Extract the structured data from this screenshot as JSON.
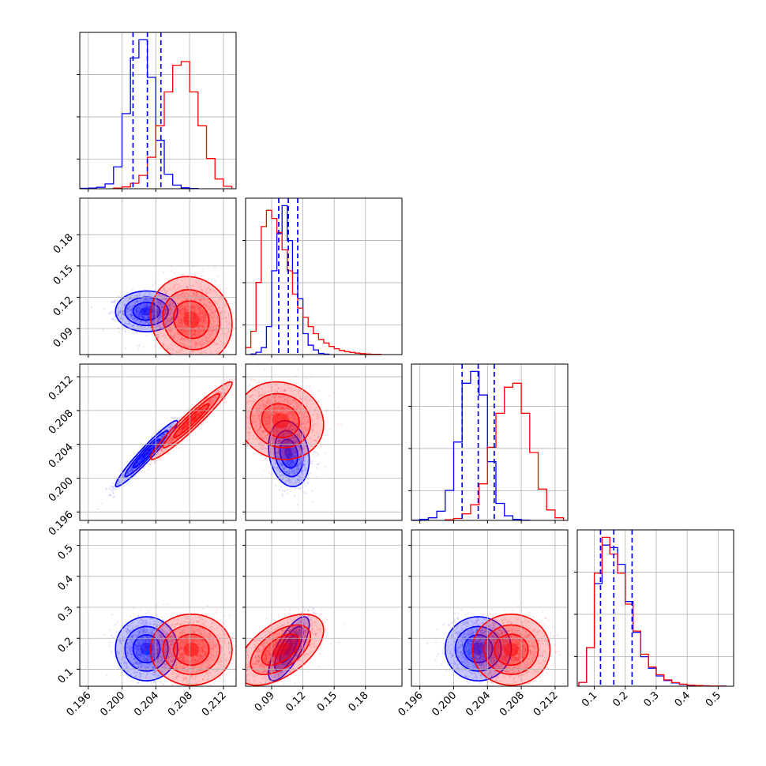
{
  "chart_data": {
    "type": "corner",
    "parameters": 4,
    "colors": {
      "blue": "#0000ff",
      "red": "#ff0000",
      "grid": "#b0b0b0"
    },
    "grid": true,
    "axis_ranges": [
      [
        0.195,
        0.2135
      ],
      [
        0.065,
        0.215
      ],
      [
        0.195,
        0.2135
      ],
      [
        0.045,
        0.55
      ]
    ],
    "tick_labels": {
      "p0": [
        "0.196",
        "0.200",
        "0.204",
        "0.208",
        "0.212"
      ],
      "p1": [
        "0.09",
        "0.12",
        "0.15",
        "0.18"
      ],
      "p2": [
        "0.196",
        "0.200",
        "0.204",
        "0.208",
        "0.212"
      ],
      "p3": [
        "0.1",
        "0.2",
        "0.3",
        "0.4",
        "0.5"
      ]
    },
    "tick_values": {
      "p0": [
        0.196,
        0.2,
        0.204,
        0.208,
        0.212
      ],
      "p1": [
        0.09,
        0.12,
        0.15,
        0.18
      ],
      "p2": [
        0.196,
        0.2,
        0.204,
        0.208,
        0.212
      ],
      "p3": [
        0.1,
        0.2,
        0.3,
        0.4,
        0.5
      ]
    },
    "histograms": [
      {
        "param": 0,
        "blue": {
          "x": [
            0.1955,
            0.1965,
            0.1975,
            0.1985,
            0.1995,
            0.2005,
            0.2015,
            0.2025,
            0.2035,
            0.2045,
            0.2055,
            0.2065,
            0.2075,
            0.2085
          ],
          "counts": [
            3,
            6,
            12,
            40,
            180,
            620,
            1080,
            1230,
            920,
            400,
            120,
            30,
            8,
            2
          ]
        },
        "red": {
          "x": [
            0.1995,
            0.2005,
            0.2015,
            0.2025,
            0.2035,
            0.2045,
            0.2055,
            0.2065,
            0.2075,
            0.2085,
            0.2095,
            0.2105,
            0.2115,
            0.2125
          ],
          "counts": [
            5,
            15,
            45,
            110,
            260,
            520,
            800,
            1020,
            1050,
            800,
            520,
            250,
            80,
            20
          ]
        },
        "quantiles_blue": [
          0.2013,
          0.203,
          0.2046
        ]
      },
      {
        "param": 1,
        "blue": {
          "x": [
            0.0675,
            0.0725,
            0.0775,
            0.0825,
            0.0875,
            0.0925,
            0.0975,
            0.1025,
            0.1075,
            0.1125,
            0.1175,
            0.1225,
            0.1275,
            0.1325,
            0.1375,
            0.1425
          ],
          "counts": [
            0,
            5,
            20,
            60,
            240,
            720,
            1040,
            1280,
            980,
            700,
            480,
            180,
            80,
            40,
            10,
            4
          ]
        },
        "red": {
          "x": [
            0.0675,
            0.0725,
            0.0775,
            0.0825,
            0.0875,
            0.0925,
            0.0975,
            0.1025,
            0.1075,
            0.1125,
            0.1175,
            0.1225,
            0.1275,
            0.1325,
            0.1375,
            0.1425,
            0.1475,
            0.1525,
            0.1575,
            0.1625,
            0.1675,
            0.1725,
            0.1775,
            0.1825,
            0.1875,
            0.1925
          ],
          "counts": [
            60,
            200,
            620,
            1100,
            1240,
            1170,
            1050,
            900,
            720,
            520,
            400,
            320,
            240,
            180,
            130,
            100,
            70,
            50,
            35,
            25,
            18,
            12,
            8,
            5,
            3,
            2
          ]
        },
        "quantiles_blue": [
          0.0968,
          0.106,
          0.115
        ]
      },
      {
        "param": 2,
        "blue": {
          "x": [
            0.1955,
            0.1965,
            0.1975,
            0.1985,
            0.1995,
            0.2005,
            0.2015,
            0.2025,
            0.2035,
            0.2045,
            0.2055,
            0.2065,
            0.2075,
            0.2085
          ],
          "counts": [
            2,
            8,
            20,
            70,
            230,
            600,
            1050,
            1140,
            960,
            450,
            130,
            35,
            8,
            2
          ]
        },
        "red": {
          "x": [
            0.1995,
            0.2005,
            0.2015,
            0.2025,
            0.2035,
            0.2045,
            0.2055,
            0.2065,
            0.2075,
            0.2085,
            0.2095,
            0.2105,
            0.2115,
            0.2125
          ],
          "counts": [
            5,
            15,
            50,
            120,
            280,
            560,
            820,
            1020,
            1050,
            820,
            520,
            240,
            80,
            20
          ]
        },
        "quantiles_blue": [
          0.201,
          0.2029,
          0.2048
        ]
      },
      {
        "param": 3,
        "blue": {
          "x": [
            0.0625,
            0.0875,
            0.1125,
            0.1375,
            0.1625,
            0.1875,
            0.2125,
            0.2375,
            0.2625,
            0.2875,
            0.3125,
            0.3375,
            0.3625,
            0.3875,
            0.4125,
            0.4375,
            0.4625,
            0.4875,
            0.5125
          ],
          "counts": [
            30,
            300,
            800,
            1100,
            1080,
            950,
            660,
            420,
            230,
            140,
            80,
            45,
            25,
            14,
            8,
            5,
            3,
            2,
            1
          ]
        },
        "red": {
          "x": [
            0.0625,
            0.0875,
            0.1125,
            0.1375,
            0.1625,
            0.1875,
            0.2125,
            0.2375,
            0.2625,
            0.2875,
            0.3125,
            0.3375,
            0.3625,
            0.3875,
            0.4125,
            0.4375,
            0.4625,
            0.4875,
            0.5125
          ],
          "counts": [
            30,
            300,
            880,
            1160,
            1030,
            880,
            640,
            430,
            250,
            150,
            90,
            50,
            28,
            16,
            9,
            6,
            3,
            2,
            1
          ]
        },
        "quantiles_blue": [
          0.12,
          0.163,
          0.222
        ]
      }
    ],
    "distributions": {
      "blue": {
        "mean": [
          0.2029,
          0.1065,
          0.2029,
          0.166
        ],
        "sd": [
          0.0016,
          0.0085,
          0.0017,
          0.045
        ],
        "corr": [
          [
            1,
            0.0,
            0.96,
            0.0
          ],
          [
            0.0,
            1,
            -0.2,
            0.75
          ],
          [
            0.96,
            -0.2,
            1,
            0.0
          ],
          [
            0.0,
            0.75,
            0.0,
            1
          ]
        ]
      },
      "red": {
        "mean": [
          0.2082,
          0.0985,
          0.2068,
          0.163
        ],
        "sd": [
          0.0021,
          0.018,
          0.002,
          0.05
        ],
        "corr": [
          [
            1,
            -0.1,
            0.96,
            0.0
          ],
          [
            -0.1,
            1,
            -0.1,
            0.55
          ],
          [
            0.96,
            -0.1,
            1,
            0.0
          ],
          [
            0.0,
            0.55,
            0.0,
            1
          ]
        ]
      }
    }
  }
}
